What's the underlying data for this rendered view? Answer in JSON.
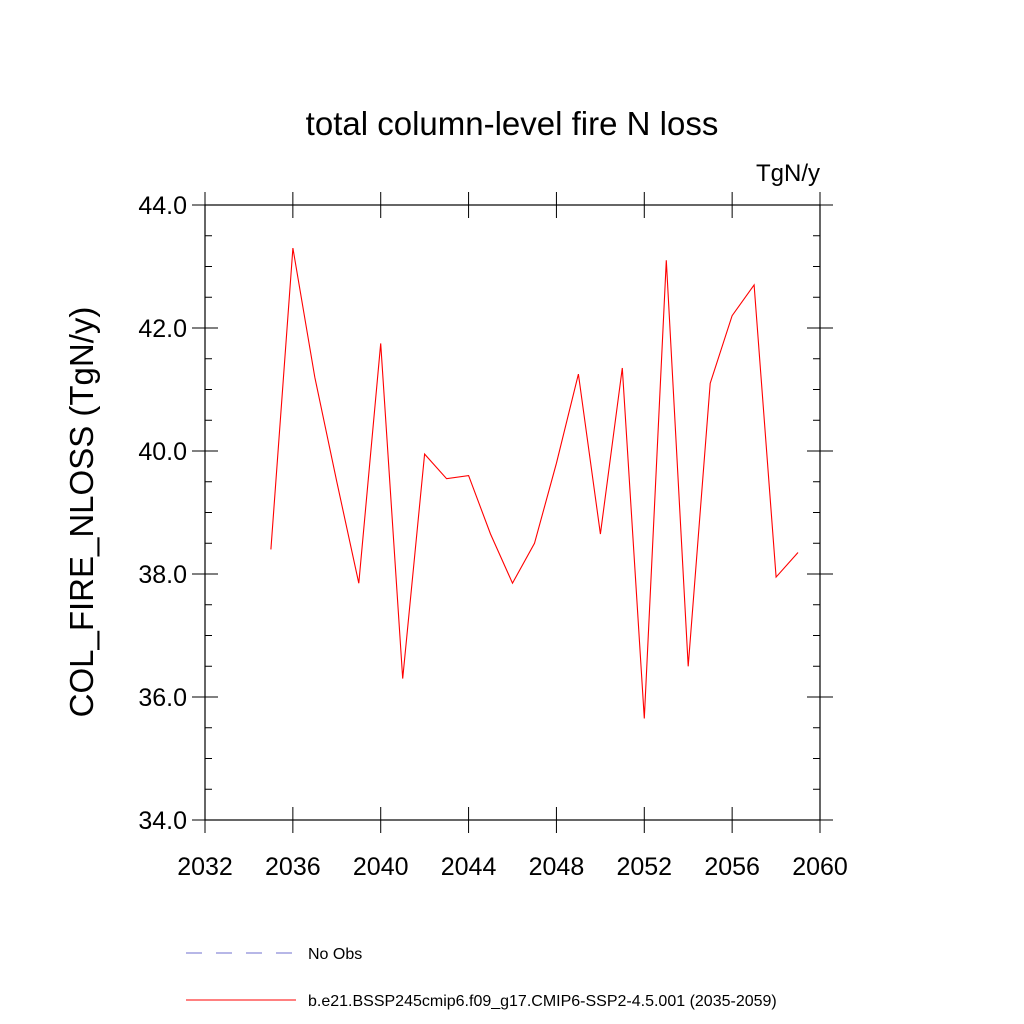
{
  "chart_data": {
    "type": "line",
    "title": "total column-level fire N loss",
    "units": "TgN/y",
    "ylabel": "COL_FIRE_NLOSS  (TgN/y)",
    "xlabel": "",
    "xlim": [
      2032,
      2060
    ],
    "ylim": [
      34.0,
      44.0
    ],
    "x_ticks": [
      2032,
      2036,
      2040,
      2044,
      2048,
      2052,
      2056,
      2060
    ],
    "y_ticks": [
      34.0,
      36.0,
      38.0,
      40.0,
      42.0,
      44.0
    ],
    "x_tick_labels": [
      "2032",
      "2036",
      "2040",
      "2044",
      "2048",
      "2052",
      "2056",
      "2060"
    ],
    "y_tick_labels": [
      "34.0",
      "36.0",
      "38.0",
      "40.0",
      "42.0",
      "44.0"
    ],
    "grid": false,
    "legend_position": "bottom",
    "series": [
      {
        "name": "No Obs",
        "color": "#6f6fcf",
        "dash": "dashed",
        "x": [],
        "values": []
      },
      {
        "name": "b.e21.BSSP245cmip6.f09_g17.CMIP6-SSP2-4.5.001 (2035-2059)",
        "color": "#ff0000",
        "dash": "solid",
        "x": [
          2035,
          2036,
          2037,
          2038,
          2039,
          2040,
          2041,
          2042,
          2043,
          2044,
          2045,
          2046,
          2047,
          2048,
          2049,
          2050,
          2051,
          2052,
          2053,
          2054,
          2055,
          2056,
          2057,
          2058,
          2059
        ],
        "values": [
          38.4,
          43.3,
          41.2,
          39.5,
          37.85,
          41.75,
          36.3,
          39.95,
          39.55,
          39.6,
          38.65,
          37.85,
          38.5,
          39.8,
          41.25,
          38.65,
          41.35,
          35.65,
          43.1,
          36.5,
          41.1,
          42.2,
          42.7,
          37.95,
          38.35
        ]
      }
    ]
  }
}
